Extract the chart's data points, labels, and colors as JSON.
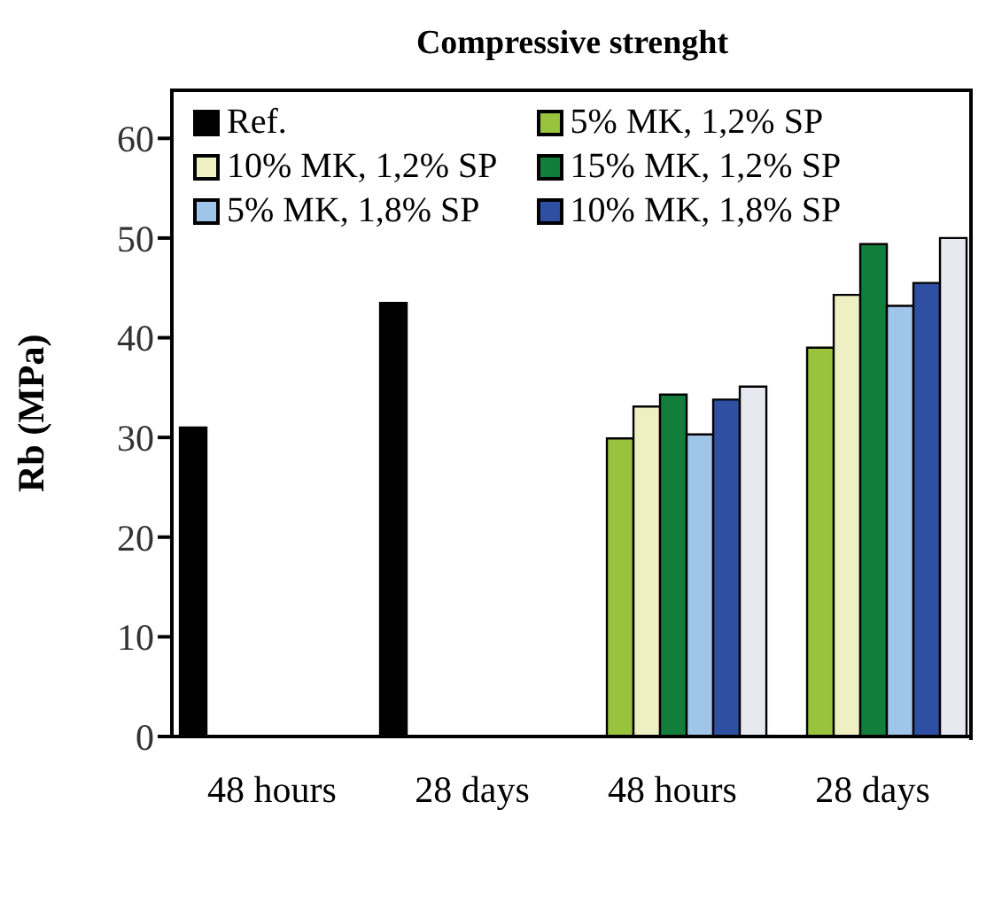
{
  "chart_data": {
    "type": "bar",
    "title": "Compressive strenght",
    "ylabel": "Rb (MPa)",
    "categories": [
      "48 hours",
      "28 days",
      "48 hours",
      "28 days"
    ],
    "series": [
      {
        "name": "Ref.",
        "color": "#000000",
        "values": [
          31,
          43.5,
          null,
          null
        ]
      },
      {
        "name": "5% MK, 1,2% SP",
        "color": "#99c33c",
        "values": [
          null,
          null,
          29.9,
          39
        ]
      },
      {
        "name": "10% MK, 1,2% SP",
        "color": "#eef0c4",
        "values": [
          null,
          null,
          33.1,
          44.3
        ]
      },
      {
        "name": "15% MK, 1,2% SP",
        "color": "#137d3c",
        "values": [
          null,
          null,
          34.3,
          49.4
        ]
      },
      {
        "name": "5% MK, 1,8% SP",
        "color": "#9fc5e8",
        "values": [
          null,
          null,
          30.3,
          43.2
        ]
      },
      {
        "name": "10% MK, 1,8% SP",
        "color": "#2f4fa2",
        "values": [
          null,
          null,
          33.8,
          45.5
        ]
      },
      {
        "color": "#e8e8f0",
        "values": [
          null,
          null,
          35.1,
          50
        ]
      }
    ],
    "ylim": [
      0,
      65
    ],
    "yticks": [
      0,
      10,
      20,
      30,
      40,
      50,
      60
    ],
    "grid": false,
    "legend": "top"
  }
}
